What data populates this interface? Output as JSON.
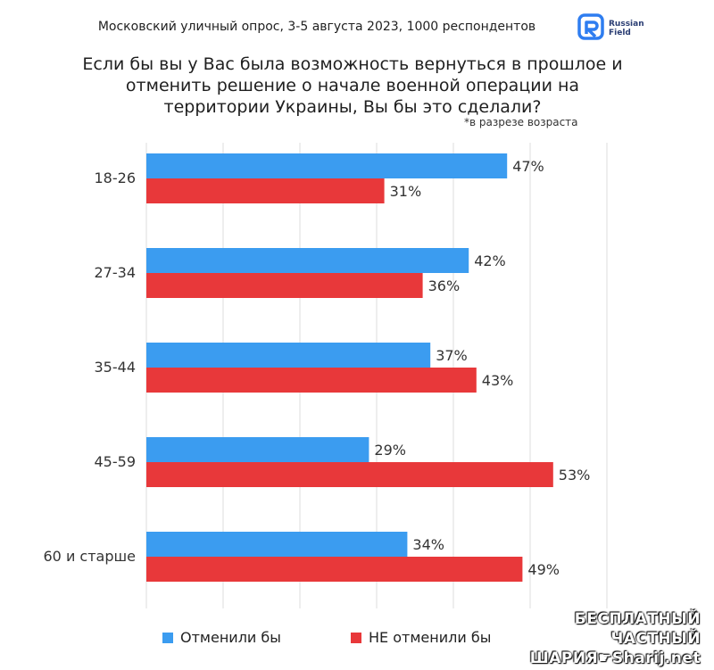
{
  "header": {
    "subtitle": "Московский уличный опрос, 3-5 августа 2023, 1000 респондентов",
    "logo_text_1": "Russian",
    "logo_text_2": "Field"
  },
  "colors": {
    "series_1": "#3b9cf0",
    "series_2": "#e8383a",
    "grid": "#dedede"
  },
  "chart_data": {
    "type": "bar",
    "orientation": "horizontal",
    "title": "Если бы вы у Вас была возможность вернуться в прошлое и отменить решение о начале военной операции на территории Украины, Вы бы это сделали?",
    "note": "*в разрезе возраста",
    "categories": [
      "18-26",
      "27-34",
      "35-44",
      "45-59",
      "60 и старше"
    ],
    "series": [
      {
        "name": "Отменили бы",
        "values": [
          47,
          42,
          37,
          29,
          34
        ],
        "labels": [
          "47%",
          "42%",
          "37%",
          "29%",
          "34%"
        ]
      },
      {
        "name": "НЕ отменили бы",
        "values": [
          31,
          36,
          43,
          53,
          49
        ],
        "labels": [
          "31%",
          "36%",
          "43%",
          "53%",
          "49%"
        ]
      }
    ],
    "xlim": [
      0,
      60
    ],
    "grid": true,
    "legend_position": "bottom"
  },
  "watermark": {
    "line1": "БЕСПЛАТНЫЙ ЧАСТНЫЙ",
    "line2": "ШАРИЯ☛Sharij.net"
  }
}
